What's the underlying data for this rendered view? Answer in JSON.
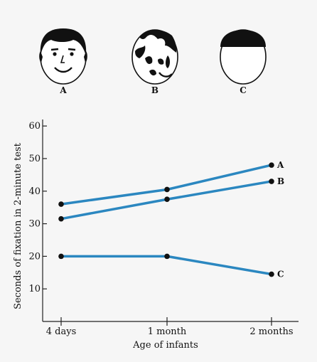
{
  "chart_data": {
    "type": "line",
    "xlabel": "Age of infants",
    "ylabel": "Seconds of fixation in 2-minute test",
    "categories": [
      "4 days",
      "1 month",
      "2 months"
    ],
    "ylim": [
      0,
      62
    ],
    "yticks": [
      "60",
      "50",
      "40",
      "30",
      "20",
      "10"
    ],
    "grid": false,
    "series_color": "#2b87c0",
    "series": [
      {
        "name": "A",
        "values": [
          36,
          40.5,
          48
        ]
      },
      {
        "name": "B",
        "values": [
          31.5,
          37.5,
          43
        ]
      },
      {
        "name": "C",
        "values": [
          20,
          20,
          14.5
        ]
      }
    ],
    "stimuli": [
      {
        "label": "A",
        "image": "face-drawing-icon"
      },
      {
        "label": "B",
        "image": "scrambled-face-icon"
      },
      {
        "label": "C",
        "image": "half-black-oval-icon"
      }
    ]
  }
}
